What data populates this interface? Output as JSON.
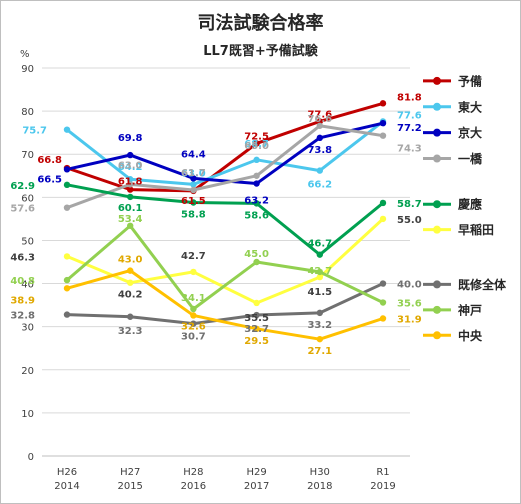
{
  "chart_data": {
    "type": "line",
    "title": "司法試験合格率",
    "subtitle": "LL7既習+予備試験",
    "ylabel": "%",
    "ylim": [
      0,
      90
    ],
    "yticks": [
      0,
      10,
      20,
      30,
      40,
      50,
      60,
      70,
      80,
      90
    ],
    "grid": true,
    "legend_position": "right",
    "categories": [
      {
        "era": "H26",
        "year": "2014"
      },
      {
        "era": "H27",
        "year": "2015"
      },
      {
        "era": "H28",
        "year": "2016"
      },
      {
        "era": "H29",
        "year": "2017"
      },
      {
        "era": "H30",
        "year": "2018"
      },
      {
        "era": "R1",
        "year": "2019"
      }
    ],
    "series": [
      {
        "name": "予備",
        "color": "#c00000",
        "values": [
          66.8,
          61.8,
          61.5,
          72.5,
          77.6,
          81.8
        ],
        "legend_y": 87.0
      },
      {
        "name": "東大",
        "color": "#4cc7ed",
        "values": [
          75.7,
          64.2,
          63.0,
          68.7,
          66.2,
          77.6
        ],
        "legend_y": 81.0
      },
      {
        "name": "京大",
        "color": "#0000c0",
        "values": [
          66.5,
          69.8,
          64.4,
          63.2,
          73.8,
          77.2
        ],
        "legend_y": 75.0
      },
      {
        "name": "一橋",
        "color": "#a6a6a6",
        "values": [
          57.6,
          63.0,
          61.7,
          65.0,
          76.6,
          74.3
        ],
        "legend_y": 69.0
      },
      {
        "name": "慶應",
        "color": "#00a050",
        "values": [
          62.9,
          60.1,
          58.8,
          58.6,
          46.7,
          58.7
        ],
        "legend_y": 58.4
      },
      {
        "name": "早稲田",
        "color": "#ffff40",
        "values": [
          46.3,
          40.2,
          42.7,
          35.5,
          41.5,
          55.0
        ],
        "legend_y": 52.5
      },
      {
        "name": "既修全体",
        "color": "#707070",
        "values": [
          32.8,
          32.3,
          30.7,
          32.7,
          33.2,
          40.0
        ],
        "legend_y": 39.8
      },
      {
        "name": "神戸",
        "color": "#92d050",
        "values": [
          40.8,
          53.4,
          34.1,
          45.0,
          42.7,
          35.6
        ],
        "legend_y": 33.9
      },
      {
        "name": "中央",
        "color": "#ffc000",
        "values": [
          38.9,
          43.0,
          32.6,
          29.5,
          27.1,
          31.9
        ],
        "legend_y": 28.0
      }
    ],
    "data_labels": [
      {
        "series": 0,
        "i": 0,
        "text": "66.8",
        "dx": -5,
        "dy": -9,
        "anchor": "end"
      },
      {
        "series": 0,
        "i": 1,
        "text": "61.8",
        "dx": 0,
        "dy": -9,
        "anchor": "middle"
      },
      {
        "series": 0,
        "i": 2,
        "text": "61.5",
        "dx": 0,
        "dy": 9,
        "anchor": "middle"
      },
      {
        "series": 0,
        "i": 3,
        "text": "72.5",
        "dx": 0,
        "dy": -8,
        "anchor": "middle"
      },
      {
        "series": 0,
        "i": 4,
        "text": "77.6",
        "dx": 0,
        "dy": -8,
        "anchor": "middle"
      },
      {
        "series": 0,
        "i": 5,
        "text": "81.8",
        "dx": 14,
        "dy": -7,
        "anchor": "start"
      },
      {
        "series": 1,
        "i": 0,
        "text": "75.7",
        "dx": -20,
        "dy": 0,
        "anchor": "end"
      },
      {
        "series": 1,
        "i": 1,
        "text": "64.2",
        "dx": 0,
        "dy": -13,
        "anchor": "middle"
      },
      {
        "series": 1,
        "i": 2,
        "text": "63.0",
        "dx": 0,
        "dy": -12,
        "anchor": "middle"
      },
      {
        "series": 1,
        "i": 3,
        "text": "68.7",
        "dx": 0,
        "dy": -17,
        "anchor": "middle"
      },
      {
        "series": 1,
        "i": 4,
        "text": "66.2",
        "dx": 0,
        "dy": 13,
        "anchor": "middle"
      },
      {
        "series": 1,
        "i": 5,
        "text": "77.6",
        "dx": 14,
        "dy": -7,
        "anchor": "start"
      },
      {
        "series": 2,
        "i": 0,
        "text": "66.5",
        "dx": -5,
        "dy": 9,
        "anchor": "end"
      },
      {
        "series": 2,
        "i": 1,
        "text": "69.8",
        "dx": 0,
        "dy": -18,
        "anchor": "middle"
      },
      {
        "series": 2,
        "i": 2,
        "text": "64.4",
        "dx": 0,
        "dy": -25,
        "anchor": "middle"
      },
      {
        "series": 2,
        "i": 3,
        "text": "63.2",
        "dx": 0,
        "dy": 16,
        "anchor": "middle"
      },
      {
        "series": 2,
        "i": 4,
        "text": "73.8",
        "dx": 0,
        "dy": 11,
        "anchor": "middle"
      },
      {
        "series": 2,
        "i": 5,
        "text": "77.2",
        "dx": 14,
        "dy": 4,
        "anchor": "start"
      },
      {
        "series": 3,
        "i": 0,
        "text": "57.6",
        "dx": -32,
        "dy": 0,
        "anchor": "end"
      },
      {
        "series": 3,
        "i": 1,
        "text": "63.0",
        "dx": 0,
        "dy": -20,
        "anchor": "middle"
      },
      {
        "series": 3,
        "i": 2,
        "text": "61.7",
        "dx": 0,
        "dy": -18,
        "anchor": "middle"
      },
      {
        "series": 3,
        "i": 3,
        "text": "65.0",
        "dx": 0,
        "dy": -31,
        "anchor": "middle"
      },
      {
        "series": 3,
        "i": 4,
        "text": "76.6",
        "dx": 0,
        "dy": -8,
        "anchor": "middle"
      },
      {
        "series": 3,
        "i": 5,
        "text": "74.3",
        "dx": 14,
        "dy": 12,
        "anchor": "start"
      },
      {
        "series": 4,
        "i": 0,
        "text": "62.9",
        "dx": -32,
        "dy": 0,
        "anchor": "end"
      },
      {
        "series": 4,
        "i": 1,
        "text": "60.1",
        "dx": 0,
        "dy": 10,
        "anchor": "middle"
      },
      {
        "series": 4,
        "i": 2,
        "text": "58.8",
        "dx": 0,
        "dy": 11,
        "anchor": "middle"
      },
      {
        "series": 4,
        "i": 3,
        "text": "58.6",
        "dx": 0,
        "dy": 11,
        "anchor": "middle"
      },
      {
        "series": 4,
        "i": 4,
        "text": "46.7",
        "dx": 0,
        "dy": -12,
        "anchor": "middle"
      },
      {
        "series": 4,
        "i": 5,
        "text": "58.7",
        "dx": 14,
        "dy": 0,
        "anchor": "start"
      },
      {
        "series": 5,
        "i": 0,
        "text": "46.3",
        "dx": -32,
        "dy": 0,
        "anchor": "end"
      },
      {
        "series": 5,
        "i": 1,
        "text": "40.2",
        "dx": 0,
        "dy": 11,
        "anchor": "middle"
      },
      {
        "series": 5,
        "i": 2,
        "text": "42.7",
        "dx": 0,
        "dy": -17,
        "anchor": "middle"
      },
      {
        "series": 5,
        "i": 3,
        "text": "35.5",
        "dx": 0,
        "dy": 14,
        "anchor": "middle"
      },
      {
        "series": 5,
        "i": 4,
        "text": "41.5",
        "dx": 0,
        "dy": 14,
        "anchor": "middle"
      },
      {
        "series": 5,
        "i": 5,
        "text": "55.0",
        "dx": 14,
        "dy": 0,
        "anchor": "start"
      },
      {
        "series": 6,
        "i": 0,
        "text": "32.8",
        "dx": -32,
        "dy": 0,
        "anchor": "end"
      },
      {
        "series": 6,
        "i": 1,
        "text": "32.3",
        "dx": 0,
        "dy": 13,
        "anchor": "middle"
      },
      {
        "series": 6,
        "i": 2,
        "text": "30.7",
        "dx": 0,
        "dy": 12,
        "anchor": "middle"
      },
      {
        "series": 6,
        "i": 3,
        "text": "32.7",
        "dx": 0,
        "dy": 13,
        "anchor": "middle"
      },
      {
        "series": 6,
        "i": 4,
        "text": "33.2",
        "dx": 0,
        "dy": 11,
        "anchor": "middle"
      },
      {
        "series": 6,
        "i": 5,
        "text": "40.0",
        "dx": 14,
        "dy": 0,
        "anchor": "start"
      },
      {
        "series": 7,
        "i": 0,
        "text": "40.8",
        "dx": -32,
        "dy": 0,
        "anchor": "end"
      },
      {
        "series": 7,
        "i": 1,
        "text": "53.4",
        "dx": 0,
        "dy": -8,
        "anchor": "middle"
      },
      {
        "series": 7,
        "i": 2,
        "text": "34.1",
        "dx": 0,
        "dy": -12,
        "anchor": "middle"
      },
      {
        "series": 7,
        "i": 3,
        "text": "45.0",
        "dx": 0,
        "dy": -9,
        "anchor": "middle"
      },
      {
        "series": 7,
        "i": 4,
        "text": "42.7",
        "dx": 0,
        "dy": -2,
        "anchor": "middle"
      },
      {
        "series": 7,
        "i": 5,
        "text": "35.6",
        "dx": 14,
        "dy": 0,
        "anchor": "start"
      },
      {
        "series": 8,
        "i": 0,
        "text": "38.9",
        "dx": -32,
        "dy": 11,
        "anchor": "end"
      },
      {
        "series": 8,
        "i": 1,
        "text": "43.0",
        "dx": 0,
        "dy": -12,
        "anchor": "middle"
      },
      {
        "series": 8,
        "i": 2,
        "text": "32.6",
        "dx": 0,
        "dy": 10,
        "anchor": "middle"
      },
      {
        "series": 8,
        "i": 3,
        "text": "29.5",
        "dx": 0,
        "dy": 11,
        "anchor": "middle"
      },
      {
        "series": 8,
        "i": 4,
        "text": "27.1",
        "dx": 0,
        "dy": 11,
        "anchor": "middle"
      },
      {
        "series": 8,
        "i": 5,
        "text": "31.9",
        "dx": 14,
        "dy": 0,
        "anchor": "start"
      }
    ]
  }
}
